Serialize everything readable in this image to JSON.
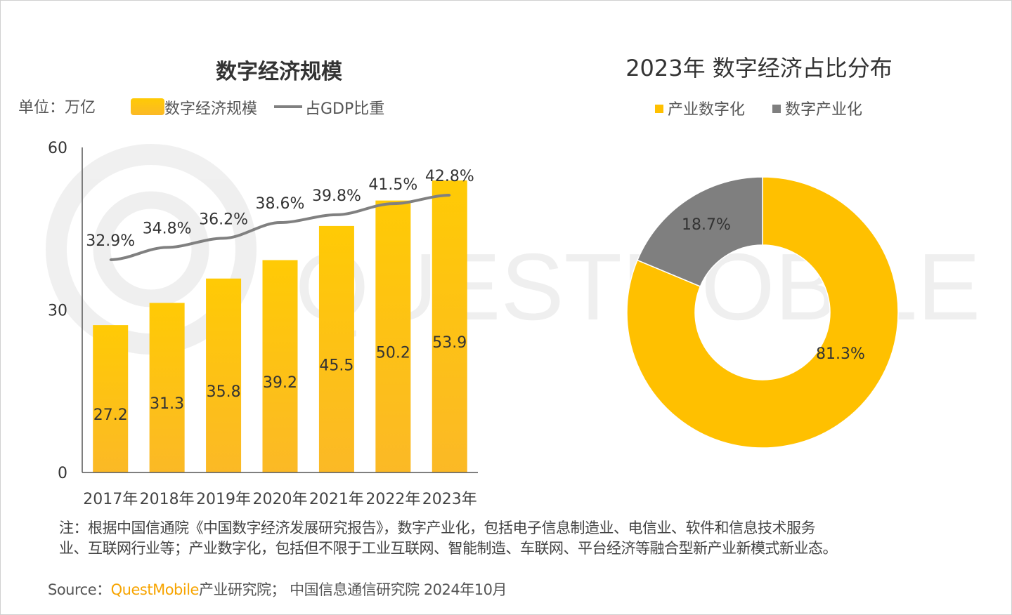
{
  "watermark": "QUESTMOBILE",
  "chart_data": [
    {
      "type": "bar",
      "title": "数字经济规模",
      "unit_label": "单位：万亿",
      "legend": [
        "数字经济规模",
        "占GDP比重"
      ],
      "legend_placement": "top",
      "categories": [
        "2017年",
        "2018年",
        "2019年",
        "2020年",
        "2021年",
        "2022年",
        "2023年"
      ],
      "series": [
        {
          "name": "数字经济规模",
          "type": "bar",
          "values": [
            27.2,
            31.3,
            35.8,
            39.2,
            45.5,
            50.2,
            53.9
          ],
          "labels": [
            "27.2",
            "31.3",
            "35.8",
            "39.2",
            "45.5",
            "50.2",
            "53.9"
          ],
          "color": "#FFC000"
        },
        {
          "name": "占GDP比重",
          "type": "line",
          "values": [
            32.9,
            34.8,
            36.2,
            38.6,
            39.8,
            41.5,
            42.8
          ],
          "labels": [
            "32.9%",
            "34.8%",
            "36.2%",
            "38.6%",
            "39.8%",
            "41.5%",
            "42.8%"
          ],
          "color": "#808080"
        }
      ],
      "yticks": [
        "0",
        "30",
        "60"
      ],
      "ylim": [
        0,
        60
      ],
      "grid": false
    },
    {
      "type": "pie",
      "title": "2023年 数字经济占比分布",
      "legend_placement": "top",
      "slices": [
        {
          "name": "产业数字化",
          "value": 81.3,
          "label": "81.3%",
          "color": "#FFC000"
        },
        {
          "name": "数字产业化",
          "value": 18.7,
          "label": "18.7%",
          "color": "#7F7F7F"
        }
      ]
    }
  ],
  "note": {
    "line1": "注：根据中国信通院《中国数字经济发展研究报告》，数字产业化，包括电子信息制造业、电信业、软件和信息技术服务",
    "line2": "业、互联网行业等；产业数字化，包括但不限于工业互联网、智能制造、车联网、平台经济等融合型新产业新模式新业态。"
  },
  "source": {
    "prefix": "Source：",
    "brand": "QuestMobile",
    "rest": "产业研究院；  中国信息通信研究院 2024年10月"
  }
}
